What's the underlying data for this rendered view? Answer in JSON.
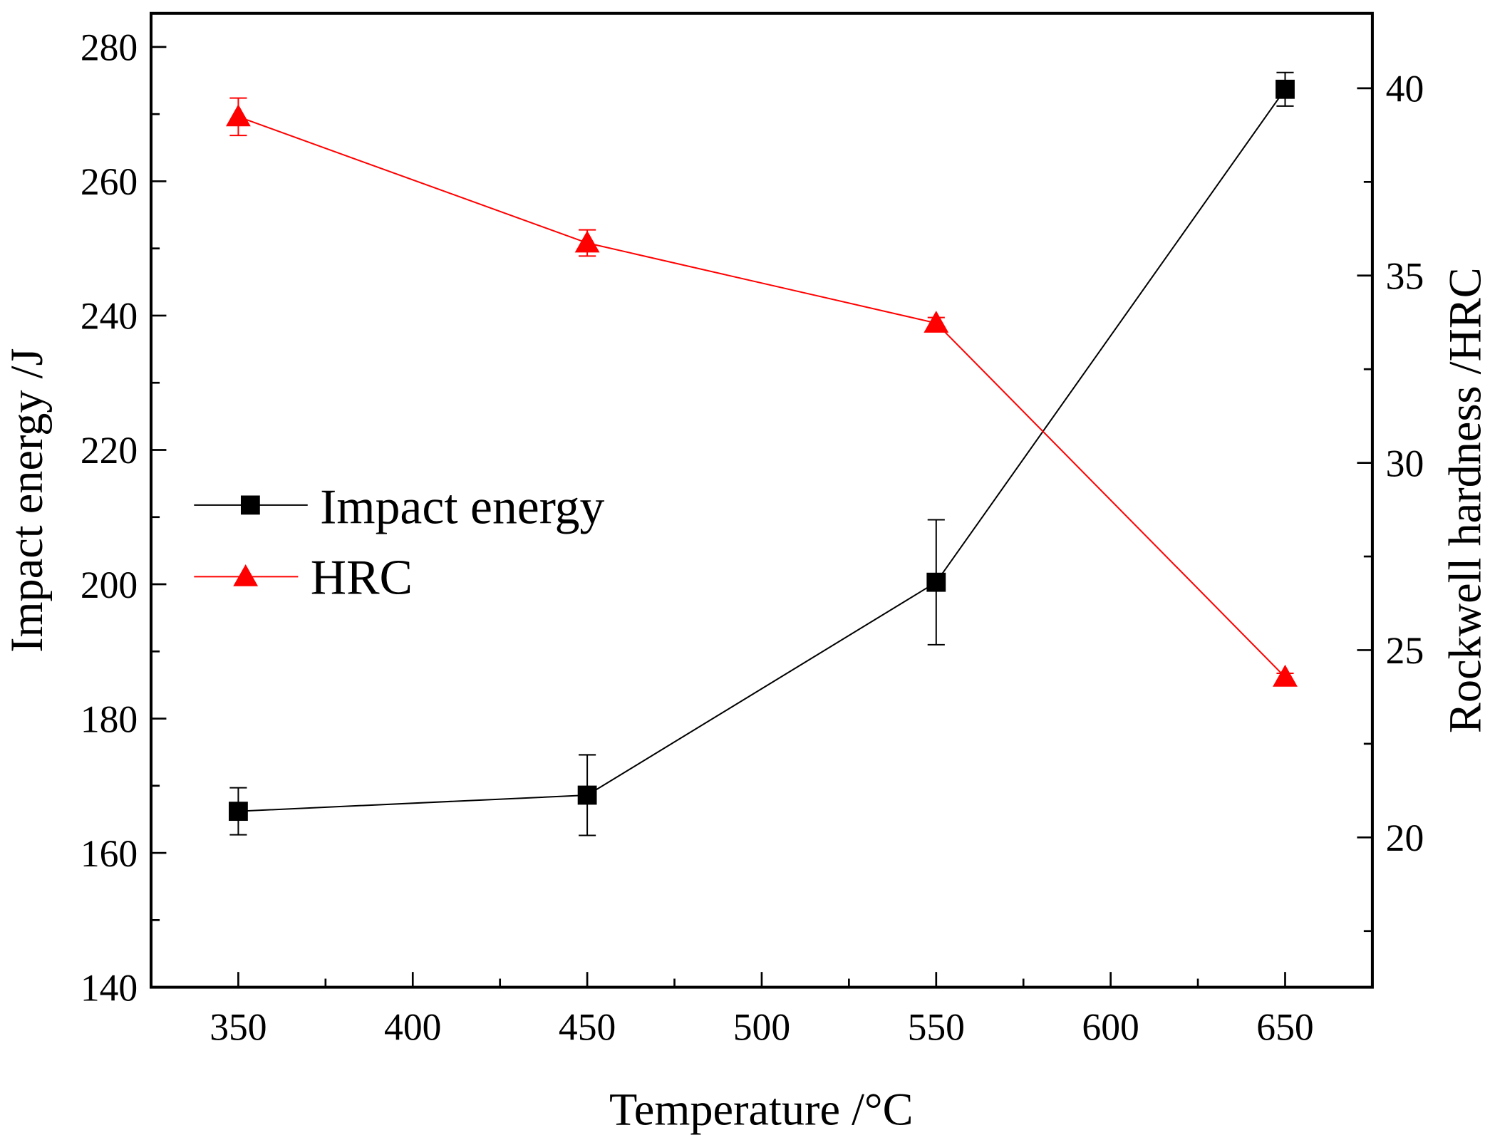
{
  "chart_data": {
    "type": "line",
    "title": "",
    "xlabel": "Temperature /°C",
    "ylabel": "Impact energy /J",
    "y2label": "Rockwell hardness /HRC",
    "xlim": [
      325,
      675
    ],
    "ylim": [
      140,
      285
    ],
    "y2lim": [
      16,
      42
    ],
    "xticks": [
      350,
      400,
      450,
      500,
      550,
      600,
      650
    ],
    "yticks": [
      140,
      160,
      180,
      200,
      220,
      240,
      260,
      280
    ],
    "y2ticks": [
      20,
      25,
      30,
      35,
      40
    ],
    "grid": false,
    "legend_position": "center-left",
    "x": [
      350,
      450,
      550,
      650
    ],
    "series": [
      {
        "name": "Impact energy",
        "axis": "left",
        "color": "#000000",
        "marker": "square",
        "values": [
          166.2,
          168.6,
          200.3,
          273.7
        ],
        "errors": [
          3.5,
          6.0,
          9.3,
          2.5
        ]
      },
      {
        "name": "HRC",
        "axis": "right",
        "color": "#ff0000",
        "marker": "triangle",
        "values": [
          39.24,
          35.87,
          33.73,
          24.28
        ],
        "errors": [
          0.5,
          0.35,
          0.15,
          0.1
        ]
      }
    ]
  }
}
